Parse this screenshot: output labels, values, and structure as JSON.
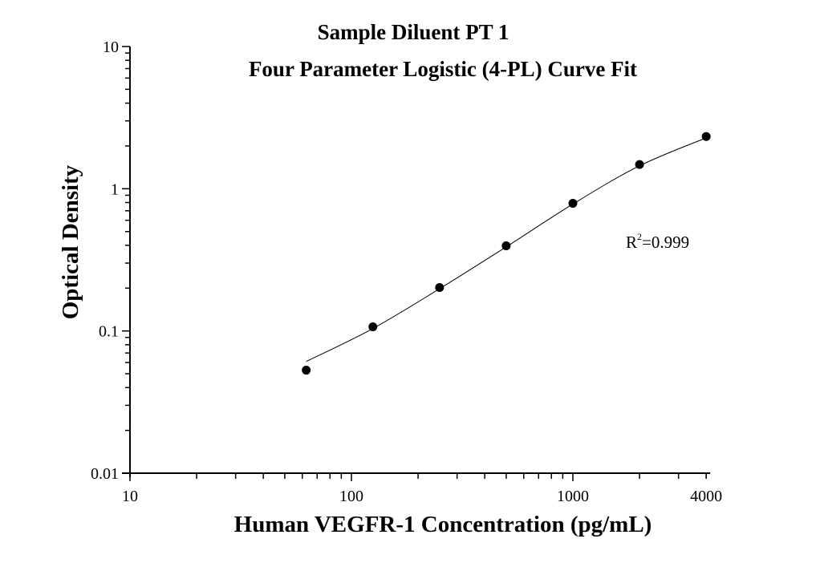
{
  "chart_data": {
    "type": "scatter",
    "title": "Sample Diluent PT 1",
    "subtitle": "Four Parameter Logistic (4-PL) Curve Fit",
    "xlabel": "Human VEGFR-1 Concentration (pg/mL)",
    "ylabel": "Optical Density",
    "x_scale": "log",
    "y_scale": "log",
    "xlim": [
      10,
      4000
    ],
    "ylim": [
      0.01,
      10
    ],
    "x_ticks": [
      "10",
      "100",
      "1000",
      "4000"
    ],
    "x_tick_values": [
      10,
      100,
      1000,
      4000
    ],
    "y_ticks": [
      "0.01",
      "0.1",
      "1",
      "10"
    ],
    "y_tick_values": [
      0.01,
      0.1,
      1,
      10
    ],
    "grid": false,
    "points": {
      "x": [
        62.5,
        125,
        250,
        500,
        1000,
        2000,
        4000
      ],
      "y": [
        0.053,
        0.107,
        0.202,
        0.397,
        0.79,
        1.48,
        2.33
      ]
    },
    "fit_curve": {
      "x": [
        62.5,
        125,
        250,
        500,
        1000,
        2000,
        4000
      ],
      "y": [
        0.061,
        0.104,
        0.198,
        0.39,
        0.78,
        1.45,
        2.28
      ]
    },
    "annotation": {
      "base": "R",
      "sup": "2",
      "rest": "=0.999"
    },
    "colors": {
      "points": "#000000",
      "curve": "#000000",
      "axes": "#000000"
    }
  }
}
